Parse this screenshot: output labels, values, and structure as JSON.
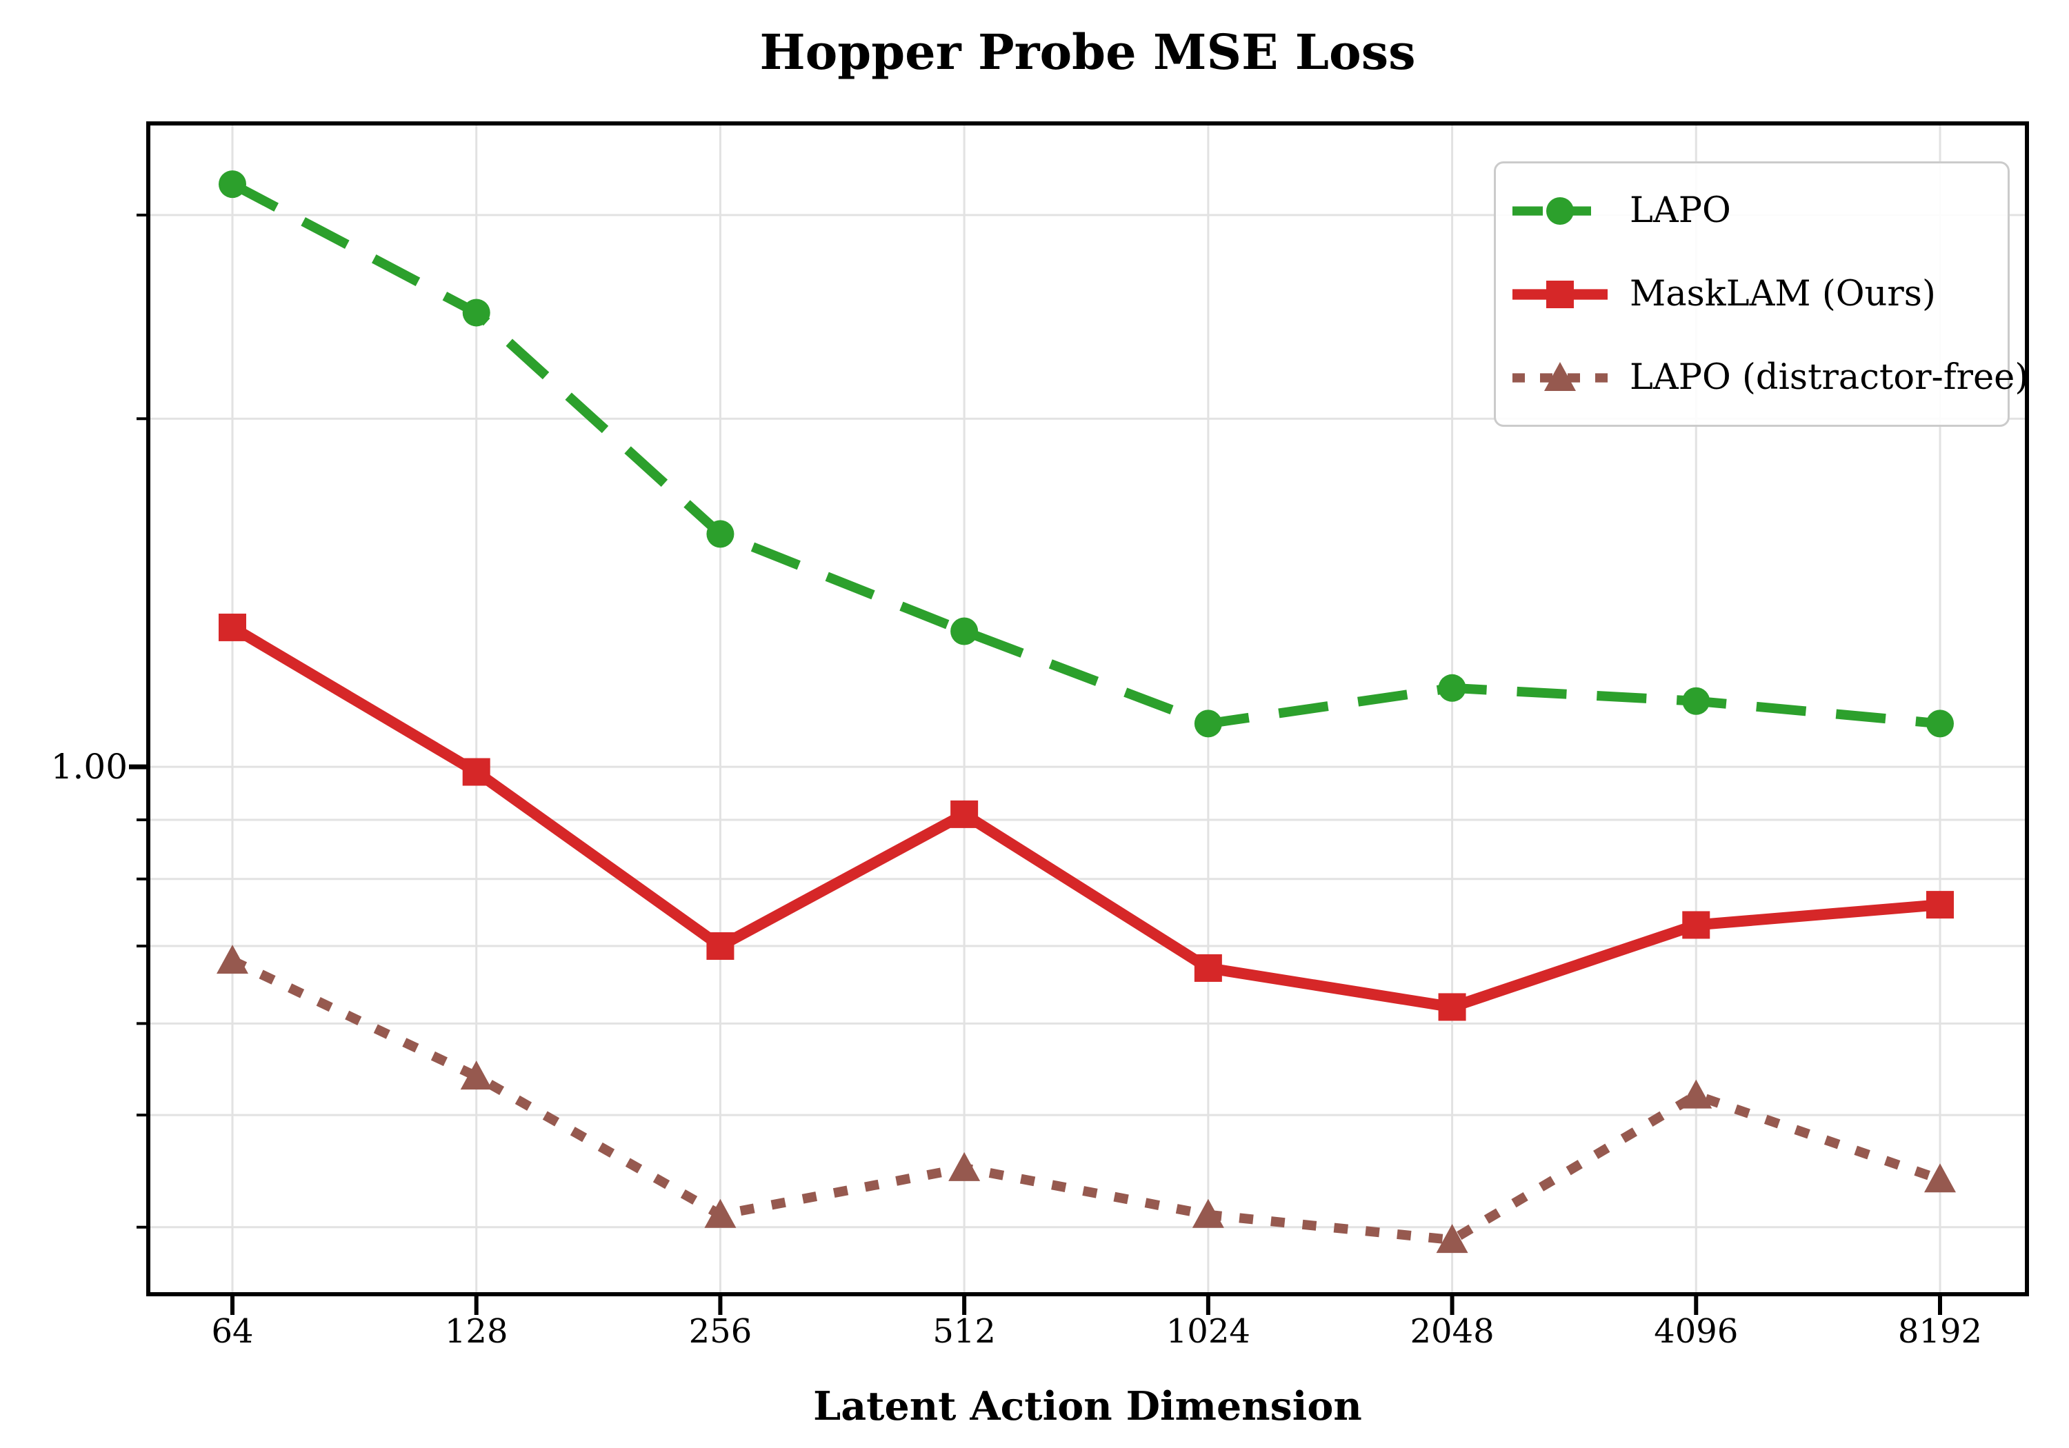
{
  "title": "Hopper Probe MSE Loss",
  "xlabel": "Latent Action Dimension",
  "yaxis": {
    "major_tick_label": "1.00"
  },
  "legend": {
    "position": "upper right"
  },
  "chart_data": {
    "type": "line",
    "title": "Hopper Probe MSE Loss",
    "xlabel": "Latent Action Dimension",
    "ylabel": "",
    "x_scale": "log2",
    "y_scale": "log10",
    "grid": true,
    "categories": [
      64,
      128,
      256,
      512,
      1024,
      2048,
      4096,
      8192
    ],
    "ylim": [
      0.35,
      3.6
    ],
    "y_major_tick": {
      "value": 1.0,
      "label": "1.00"
    },
    "y_gridlines": [
      3.0,
      2.0,
      1.0,
      0.9,
      0.8,
      0.7,
      0.6,
      0.5,
      0.4
    ],
    "legend_position": "upper right",
    "colors": {
      "grid": "#e2e2e2",
      "spine": "#000000",
      "text": "#000000"
    },
    "series": [
      {
        "name": "LAPO",
        "color": "#2ca02c",
        "line_style": "dashed",
        "marker": "circle",
        "values": [
          3.19,
          2.47,
          1.59,
          1.31,
          1.09,
          1.17,
          1.14,
          1.09
        ]
      },
      {
        "name": "MaskLAM (Ours)",
        "color": "#d62728",
        "line_style": "solid",
        "marker": "square",
        "values": [
          1.32,
          0.99,
          0.7,
          0.91,
          0.67,
          0.62,
          0.73,
          0.76
        ]
      },
      {
        "name": "LAPO (distractor-free)",
        "color": "#96594f",
        "line_style": "dotted",
        "marker": "triangle",
        "values": [
          0.68,
          0.54,
          0.41,
          0.45,
          0.41,
          0.39,
          0.52,
          0.44
        ]
      }
    ]
  }
}
